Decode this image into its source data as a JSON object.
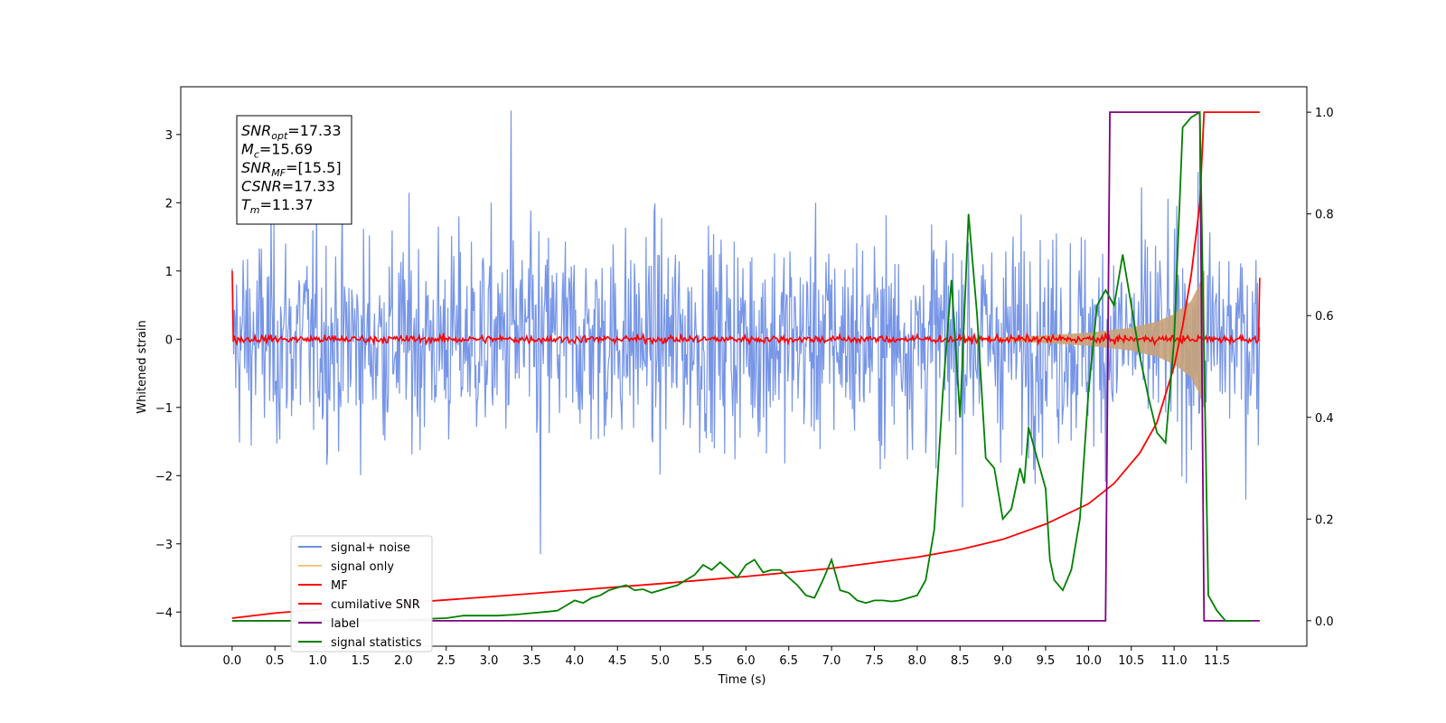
{
  "chart_data": {
    "type": "line",
    "xlabel": "Time (s)",
    "ylabel": "Whitened strain",
    "xlim": [
      -0.6,
      12.55
    ],
    "ylim_left": [
      -4.5,
      3.7
    ],
    "ylim_right": [
      -0.05,
      1.05
    ],
    "x_ticks": [
      "0.0",
      "0.5",
      "1.0",
      "1.5",
      "2.0",
      "2.5",
      "3.0",
      "3.5",
      "4.0",
      "4.5",
      "5.0",
      "5.5",
      "6.0",
      "6.5",
      "7.0",
      "7.5",
      "8.0",
      "8.5",
      "9.0",
      "9.5",
      "10.0",
      "10.5",
      "11.0",
      "11.5"
    ],
    "y_ticks_left": [
      "3",
      "2",
      "1",
      "0",
      "−1",
      "−2",
      "−3",
      "−4"
    ],
    "y_ticks_right": [
      "1.0",
      "0.8",
      "0.6",
      "0.4",
      "0.2",
      "0.0"
    ],
    "stats": [
      {
        "base": "SNR",
        "sub": "opt",
        "value": "=17.33"
      },
      {
        "base": "M",
        "sub": "c",
        "value": "=15.69"
      },
      {
        "base": "SNR",
        "sub": "MF",
        "value": "=[15.5]"
      },
      {
        "base": "CSNR",
        "sub": "",
        "value": "=17.33"
      },
      {
        "base": "T",
        "sub": "m",
        "value": "=11.37"
      }
    ],
    "legend": [
      {
        "label": "signal+ noise",
        "color": "#6f8fe6"
      },
      {
        "label": "signal only",
        "color": "#f5c77e"
      },
      {
        "label": "MF",
        "color": "#ff0000"
      },
      {
        "label": "cumilative SNR",
        "color": "#ff0000"
      },
      {
        "label": "label",
        "color": "#800080"
      },
      {
        "label": "signal statistics",
        "color": "#008000"
      }
    ],
    "series": [
      {
        "name": "signal+ noise",
        "axis": "left",
        "color": "#6f8fe6",
        "envelope": {
          "x": [
            0.0,
            12.0
          ],
          "amplitude": [
            2.2,
            2.2
          ],
          "peaks": [
            3.35,
            -3.15
          ]
        }
      },
      {
        "name": "signal only",
        "axis": "left",
        "color": "#c9a37a",
        "envelope": {
          "x": [
            8.5,
            9.0,
            9.5,
            10.0,
            10.5,
            10.8,
            11.0,
            11.2,
            11.3,
            11.35
          ],
          "amplitude": [
            0.0,
            0.02,
            0.05,
            0.09,
            0.16,
            0.25,
            0.36,
            0.55,
            0.8,
            1.0
          ]
        }
      },
      {
        "name": "MF",
        "axis": "left",
        "color": "#ff0000",
        "noise_level": 0.08,
        "endpoints": [
          1.0,
          0.9
        ]
      },
      {
        "name": "cumilative SNR",
        "axis": "right",
        "color": "#ff0000",
        "x": [
          0.0,
          0.5,
          1.0,
          2.0,
          3.0,
          4.0,
          5.0,
          6.0,
          7.0,
          8.0,
          8.5,
          9.0,
          9.5,
          10.0,
          10.3,
          10.6,
          10.8,
          11.0,
          11.1,
          11.2,
          11.3,
          11.35,
          12.0
        ],
        "y": [
          0.005,
          0.015,
          0.022,
          0.035,
          0.047,
          0.06,
          0.073,
          0.087,
          0.103,
          0.125,
          0.14,
          0.16,
          0.19,
          0.23,
          0.27,
          0.33,
          0.39,
          0.5,
          0.58,
          0.68,
          0.82,
          1.0,
          1.0
        ]
      },
      {
        "name": "label",
        "axis": "right",
        "color": "#800080",
        "x": [
          0.0,
          10.2,
          10.25,
          11.3,
          11.35,
          12.0
        ],
        "y": [
          0.0,
          0.0,
          1.0,
          1.0,
          0.0,
          0.0
        ]
      },
      {
        "name": "signal statistics",
        "axis": "right",
        "color": "#008000",
        "x": [
          0.0,
          1.0,
          2.0,
          2.5,
          2.7,
          2.9,
          3.1,
          3.3,
          3.5,
          3.7,
          3.8,
          3.9,
          4.0,
          4.1,
          4.2,
          4.3,
          4.4,
          4.5,
          4.6,
          4.7,
          4.8,
          4.9,
          5.0,
          5.1,
          5.2,
          5.3,
          5.4,
          5.5,
          5.6,
          5.7,
          5.8,
          5.9,
          6.0,
          6.1,
          6.2,
          6.3,
          6.4,
          6.5,
          6.6,
          6.7,
          6.8,
          6.9,
          7.0,
          7.1,
          7.2,
          7.3,
          7.4,
          7.5,
          7.6,
          7.7,
          7.8,
          7.9,
          8.0,
          8.1,
          8.2,
          8.3,
          8.4,
          8.5,
          8.6,
          8.7,
          8.8,
          8.9,
          9.0,
          9.1,
          9.2,
          9.25,
          9.3,
          9.4,
          9.5,
          9.55,
          9.6,
          9.7,
          9.8,
          9.9,
          10.0,
          10.1,
          10.2,
          10.3,
          10.4,
          10.5,
          10.6,
          10.7,
          10.8,
          10.9,
          11.0,
          11.1,
          11.2,
          11.3,
          11.4,
          11.5,
          11.6,
          11.8,
          11.9
        ],
        "y": [
          0.0,
          0.0,
          0.002,
          0.005,
          0.01,
          0.01,
          0.01,
          0.012,
          0.015,
          0.018,
          0.02,
          0.03,
          0.04,
          0.035,
          0.045,
          0.05,
          0.06,
          0.065,
          0.07,
          0.06,
          0.062,
          0.055,
          0.06,
          0.065,
          0.07,
          0.08,
          0.09,
          0.11,
          0.1,
          0.115,
          0.1,
          0.085,
          0.11,
          0.12,
          0.095,
          0.1,
          0.1,
          0.085,
          0.07,
          0.05,
          0.045,
          0.08,
          0.12,
          0.06,
          0.055,
          0.04,
          0.035,
          0.04,
          0.04,
          0.038,
          0.04,
          0.045,
          0.05,
          0.08,
          0.18,
          0.45,
          0.67,
          0.4,
          0.8,
          0.6,
          0.32,
          0.3,
          0.2,
          0.22,
          0.3,
          0.27,
          0.38,
          0.32,
          0.26,
          0.12,
          0.08,
          0.06,
          0.1,
          0.2,
          0.45,
          0.62,
          0.65,
          0.62,
          0.72,
          0.62,
          0.52,
          0.44,
          0.37,
          0.35,
          0.55,
          0.97,
          0.99,
          1.0,
          0.05,
          0.02,
          0.0,
          0.0,
          0.0
        ]
      }
    ]
  }
}
